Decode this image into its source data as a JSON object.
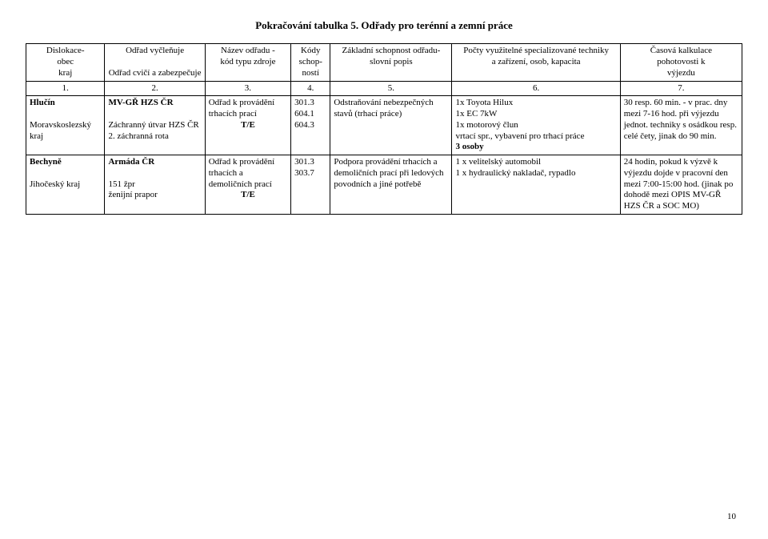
{
  "title": "Pokračování tabulka 5. Odřady pro terénní a zemní práce",
  "header": {
    "c1": "Dislokace-\nobec\nkraj",
    "c2": "Odřad vyčleňuje\n\nOdřad cvičí a zabezpečuje",
    "c3": "Název odřadu -\nkód typu zdroje",
    "c4": "Kódy\nschop-\nností",
    "c5": "Základní schopnost odřadu-\nslovní popis",
    "c6": "Počty využitelné specializované techniky\na zařízení, osob, kapacita",
    "c7": "Časová kalkulace\npohotovosti k\nvýjezdu"
  },
  "numrow": [
    "1.",
    "2.",
    "3.",
    "4.",
    "5.",
    "6.",
    "7."
  ],
  "rows": [
    {
      "c1": "Hlučín\n\nMoravskoslezský kraj",
      "c2": "MV-GŘ HZS ČR\n\nZáchranný útvar HZS ČR\n2. záchranná rota",
      "c3": "Odřad k provádění trhacích prací\nT/E",
      "c4": "301.3\n604.1\n604.3",
      "c5": "Odstraňování nebezpečných stavů (trhací práce)",
      "c6": "1x Toyota Hilux\n1x EC 7kW\n1x motorový člun\nvrtací spr., vybavení pro trhací práce\n3 osoby",
      "c7": "30 resp. 60 min. - v prac. dny mezi 7-16 hod. při výjezdu jednot. techniky s osádkou resp. celé čety, jinak do 90 min."
    },
    {
      "c1": "Bechyně\n\nJihočeský kraj",
      "c2": "Armáda ČR\n\n151 žpr\nženijní prapor",
      "c3": "Odřad k provádění trhacích a demoličních prací\nT/E",
      "c4": "301.3\n303.7",
      "c5": "Podpora provádění trhacích a demoličních prací při ledových povodních a jiné potřebě",
      "c6": "1 x velitelský automobil\n1 x hydraulický nakladač, rypadlo",
      "c7": "24 hodin, pokud k výzvě k výjezdu dojde v pracovní den mezi 7:00-15:00 hod. (jinak po dohodě mezi OPIS MV-GŘ HZS ČR a SOC MO)"
    }
  ],
  "page_number": "10"
}
